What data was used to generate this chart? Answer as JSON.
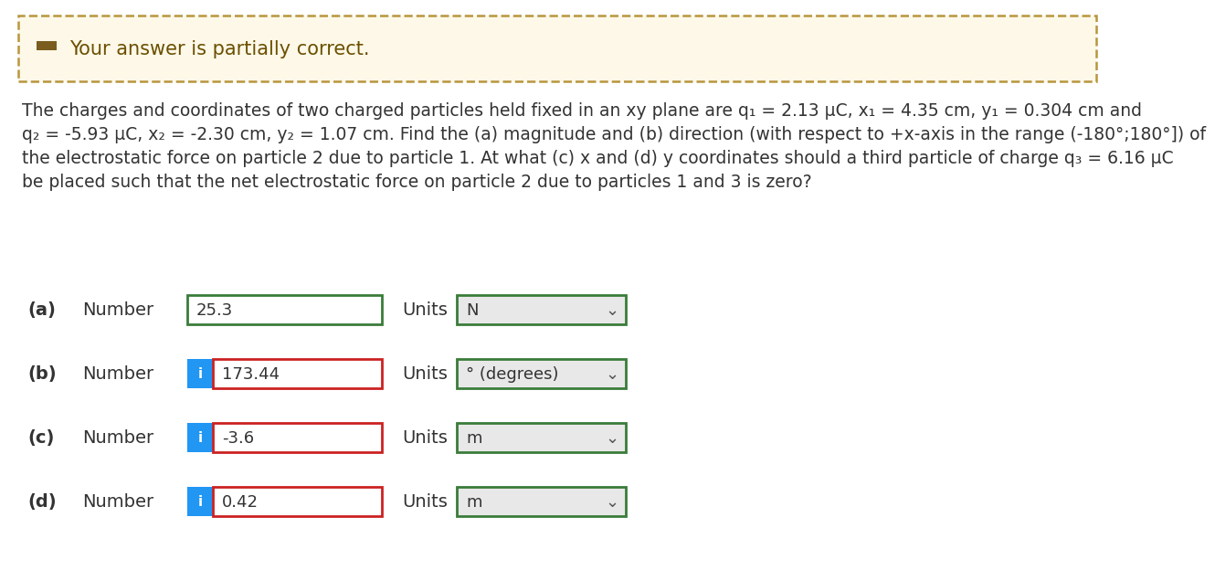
{
  "background_color": "#ffffff",
  "banner_bg": "#fdf8e8",
  "banner_border": "#b8963e",
  "banner_text": "Your answer is partially correct.",
  "banner_icon_color": "#7a5c1e",
  "problem_lines": [
    "The charges and coordinates of two charged particles held fixed in an xy plane are q₁ = 2.13 μC, x₁ = 4.35 cm, y₁ = 0.304 cm and",
    "q₂ = -5.93 μC, x₂ = -2.30 cm, y₂ = 1.07 cm. Find the (a) magnitude and (b) direction (with respect to +x-axis in the range (-180°;180°]) of",
    "the electrostatic force on particle 2 due to particle 1. At what (c) x and (d) y coordinates should a third particle of charge q₃ = 6.16 μC",
    "be placed such that the net electrostatic force on particle 2 due to particles 1 and 3 is zero?"
  ],
  "rows": [
    {
      "label": "(a)",
      "has_icon": false,
      "value": "25.3",
      "unit": "N",
      "input_border_color": "#3a7c3a",
      "unit_border_color": "#3a7c3a",
      "unit_bg": "#e8e8e8"
    },
    {
      "label": "(b)",
      "has_icon": true,
      "value": "173.44",
      "unit": "° (degrees)",
      "input_border_color": "#cc2222",
      "unit_border_color": "#3a7c3a",
      "unit_bg": "#e8e8e8"
    },
    {
      "label": "(c)",
      "has_icon": true,
      "value": "-3.6",
      "unit": "m",
      "input_border_color": "#cc2222",
      "unit_border_color": "#3a7c3a",
      "unit_bg": "#e8e8e8"
    },
    {
      "label": "(d)",
      "has_icon": true,
      "value": "0.42",
      "unit": "m",
      "input_border_color": "#cc2222",
      "unit_border_color": "#3a7c3a",
      "unit_bg": "#e8e8e8"
    }
  ],
  "icon_bg_color": "#2196F3",
  "icon_text": "i",
  "input_bg": "#ffffff",
  "text_color": "#333333",
  "banner_text_color": "#6b5000"
}
